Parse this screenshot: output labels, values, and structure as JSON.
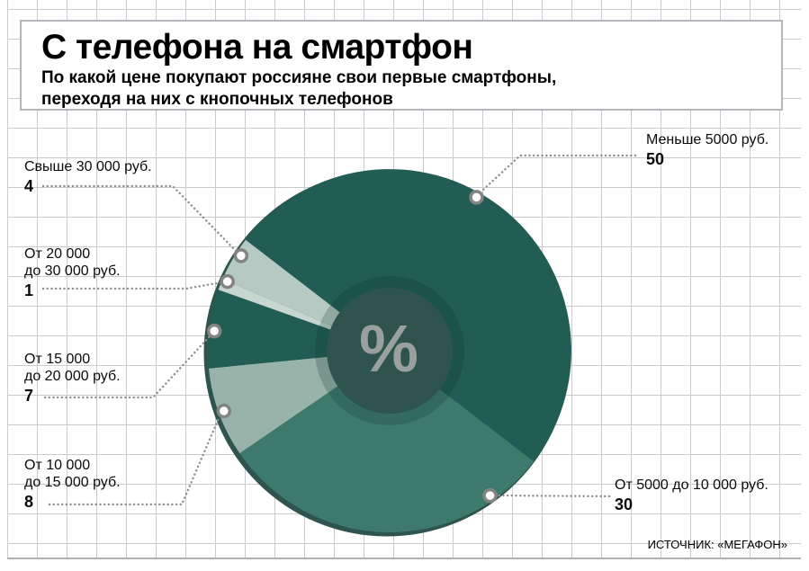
{
  "header": {
    "title": "С телефона на смартфон",
    "subtitle_line1": "По какой цене покупают россияне свои первые смартфоны,",
    "subtitle_line2": "переходя на них с кнопочных телефонов"
  },
  "source": "ИСТОЧНИК: «МЕГАФОН»",
  "chart_data": {
    "type": "pie",
    "subtype": "donut",
    "title": "С телефона на смартфон",
    "unit": "%",
    "center_label": "%",
    "start_angle_deg": -52.4,
    "direction": "clockwise",
    "legend_position": "callout-labels",
    "grid": true,
    "rim_color": "#2e544d",
    "hole_shadow_color": "rgba(10,48,42,0.22)",
    "marker_ring_color": "#848484",
    "leader_dot_color": "#8e8e8e",
    "slices": [
      {
        "label": "Меньше 5000 руб.",
        "value": 50,
        "color": "#215d55",
        "marker_angle_deg": 29.5
      },
      {
        "label": "От 5000 до 10 000 руб.",
        "value": 30,
        "color": "#3e7a6c",
        "marker_angle_deg": 145.3
      },
      {
        "label": "От 10 000 до 15 000 руб.",
        "label_lines": [
          "От 10 000",
          "до 15 000 руб."
        ],
        "value": 8,
        "color": "#98b3a9",
        "marker_angle_deg": 250.0
      },
      {
        "label": "От 15 000 до 20 000 руб.",
        "label_lines": [
          "От 15 000",
          "до 20 000 руб."
        ],
        "value": 7,
        "color": "#215d55",
        "marker_angle_deg": 276.4
      },
      {
        "label": "От 20 000 до 30 000 руб.",
        "label_lines": [
          "От 20 000",
          "до 30 000 руб."
        ],
        "value": 1,
        "color": "#c8d6d1",
        "marker_angle_deg": 293.1
      },
      {
        "label": "Свыше 30 000 руб.",
        "value": 4,
        "color": "#b6cac3",
        "marker_angle_deg": 302.6
      }
    ]
  }
}
